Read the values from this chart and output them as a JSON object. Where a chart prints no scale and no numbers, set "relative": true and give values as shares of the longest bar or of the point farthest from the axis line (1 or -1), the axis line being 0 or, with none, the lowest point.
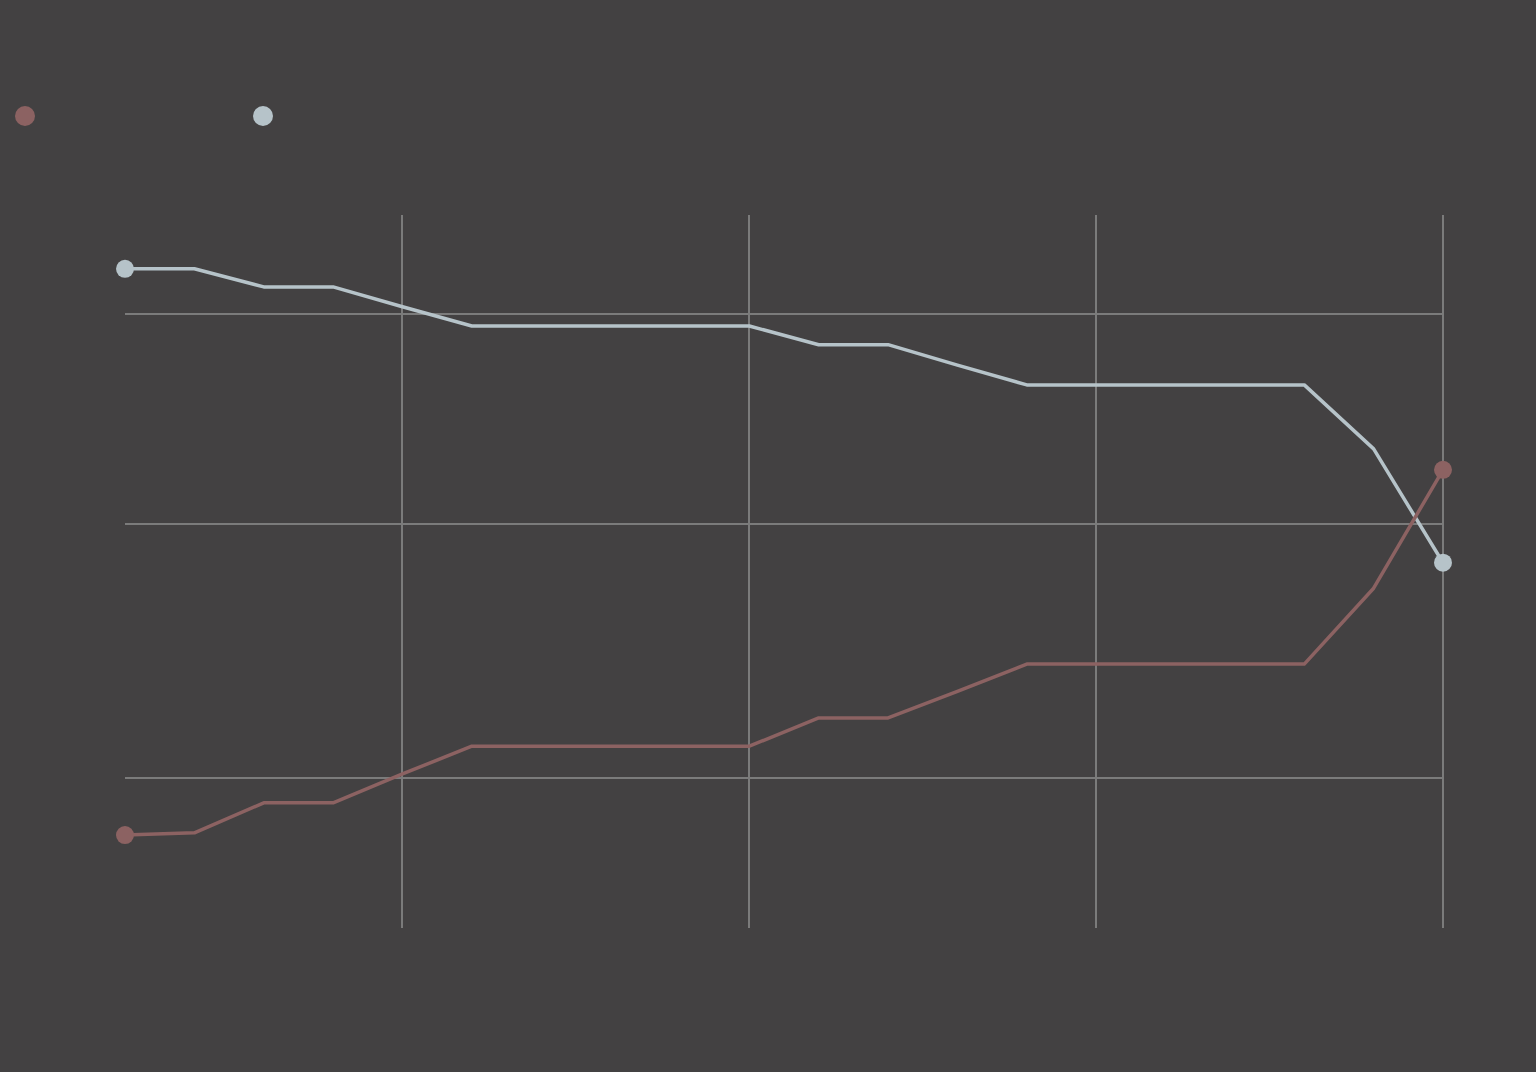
{
  "chart_data": {
    "type": "line",
    "relative": true,
    "grid": true,
    "categories": [
      null,
      null,
      null,
      null,
      null,
      null,
      null,
      null,
      null,
      null,
      null,
      null,
      null,
      null,
      null,
      null,
      null,
      null,
      null,
      null
    ],
    "series": [
      {
        "color": "#8c6262",
        "values": [
          0,
          0.004,
          0.057,
          0.057,
          0.108,
          0.157,
          0.157,
          0.157,
          0.157,
          0.157,
          0.207,
          0.207,
          0.254,
          0.302,
          0.302,
          0.302,
          0.302,
          0.302,
          0.436,
          0.645
        ]
      },
      {
        "color": "#b6c3c9",
        "values": [
          1,
          1,
          0.968,
          0.968,
          0.933,
          0.899,
          0.899,
          0.899,
          0.899,
          0.899,
          0.866,
          0.866,
          0.83,
          0.795,
          0.795,
          0.795,
          0.795,
          0.795,
          0.682,
          0.481
        ]
      }
    ]
  }
}
